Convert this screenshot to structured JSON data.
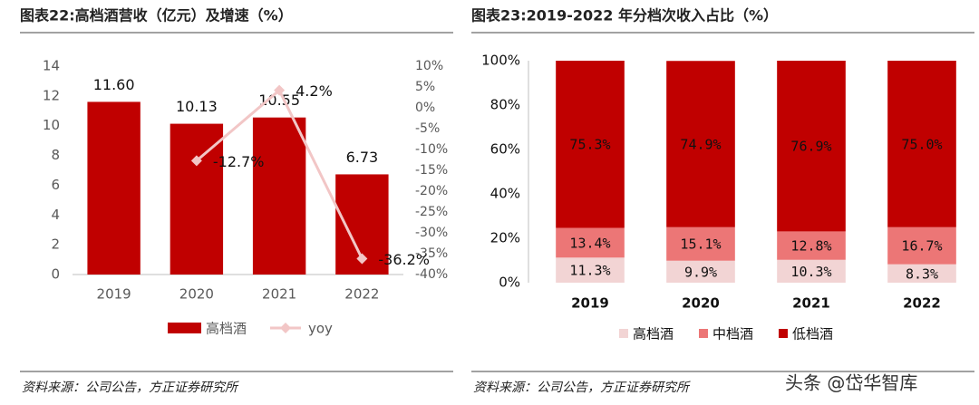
{
  "chart_data": [
    {
      "type": "bar_line",
      "title": "图表22:高档酒营收（亿元）及增速（%）",
      "categories": [
        "2019",
        "2020",
        "2021",
        "2022"
      ],
      "series": [
        {
          "name": "高档酒",
          "type": "bar",
          "color": "#c00000",
          "values": [
            11.6,
            10.13,
            10.55,
            6.73
          ],
          "value_labels": [
            "11.60",
            "10.13",
            "10.55",
            "6.73"
          ]
        },
        {
          "name": "yoy",
          "type": "line",
          "axis": "y2",
          "color": "#f2c6c6",
          "values": [
            null,
            -12.7,
            4.2,
            -36.2
          ],
          "value_labels": [
            null,
            "-12.7%",
            "4.2%",
            "-36.2%"
          ]
        }
      ],
      "ylim": [
        0,
        14
      ],
      "yticks": [
        0,
        2,
        4,
        6,
        8,
        10,
        12,
        14
      ],
      "y2lim": [
        -40,
        10
      ],
      "y2ticks": [
        {
          "value": 10,
          "label": "10%"
        },
        {
          "value": 5,
          "label": "5%"
        },
        {
          "value": 0,
          "label": "0%"
        },
        {
          "value": -5,
          "label": "-5%"
        },
        {
          "value": -10,
          "label": "-10%"
        },
        {
          "value": -15,
          "label": "-15%"
        },
        {
          "value": -20,
          "label": "-20%"
        },
        {
          "value": -25,
          "label": "-25%"
        },
        {
          "value": -30,
          "label": "-30%"
        },
        {
          "value": -35,
          "label": "-35%"
        },
        {
          "value": -40,
          "label": "-40%"
        }
      ],
      "grid": false,
      "legend": "bottom"
    },
    {
      "type": "stacked_bar",
      "title": "图表23:2019-2022 年分档次收入占比（%）",
      "categories": [
        "2019",
        "2020",
        "2021",
        "2022"
      ],
      "series": [
        {
          "name": "高档酒",
          "color": "#f2d4d4",
          "values": [
            11.3,
            9.9,
            10.3,
            8.3
          ],
          "value_labels": [
            "11.3%",
            "9.9%",
            "10.3%",
            "8.3%"
          ]
        },
        {
          "name": "中档酒",
          "color": "#ec7676",
          "values": [
            13.4,
            15.1,
            12.8,
            16.7
          ],
          "value_labels": [
            "13.4%",
            "15.1%",
            "12.8%",
            "16.7%"
          ]
        },
        {
          "name": "低档酒",
          "color": "#c00000",
          "values": [
            75.3,
            74.9,
            76.9,
            75.0
          ],
          "value_labels": [
            "75.3%",
            "74.9%",
            "76.9%",
            "75.0%"
          ]
        }
      ],
      "ylim": [
        0,
        100
      ],
      "yticks": [
        {
          "value": 0,
          "label": "0%"
        },
        {
          "value": 20,
          "label": "20%"
        },
        {
          "value": 40,
          "label": "40%"
        },
        {
          "value": 60,
          "label": "60%"
        },
        {
          "value": 80,
          "label": "80%"
        },
        {
          "value": 100,
          "label": "100%"
        }
      ],
      "grid": false,
      "legend": "bottom"
    }
  ],
  "footer": {
    "left": "资料来源：公司公告，方正证券研究所",
    "right": "资料来源：公司公告，方正证券研究所",
    "watermark": "头条 @岱华智库"
  }
}
